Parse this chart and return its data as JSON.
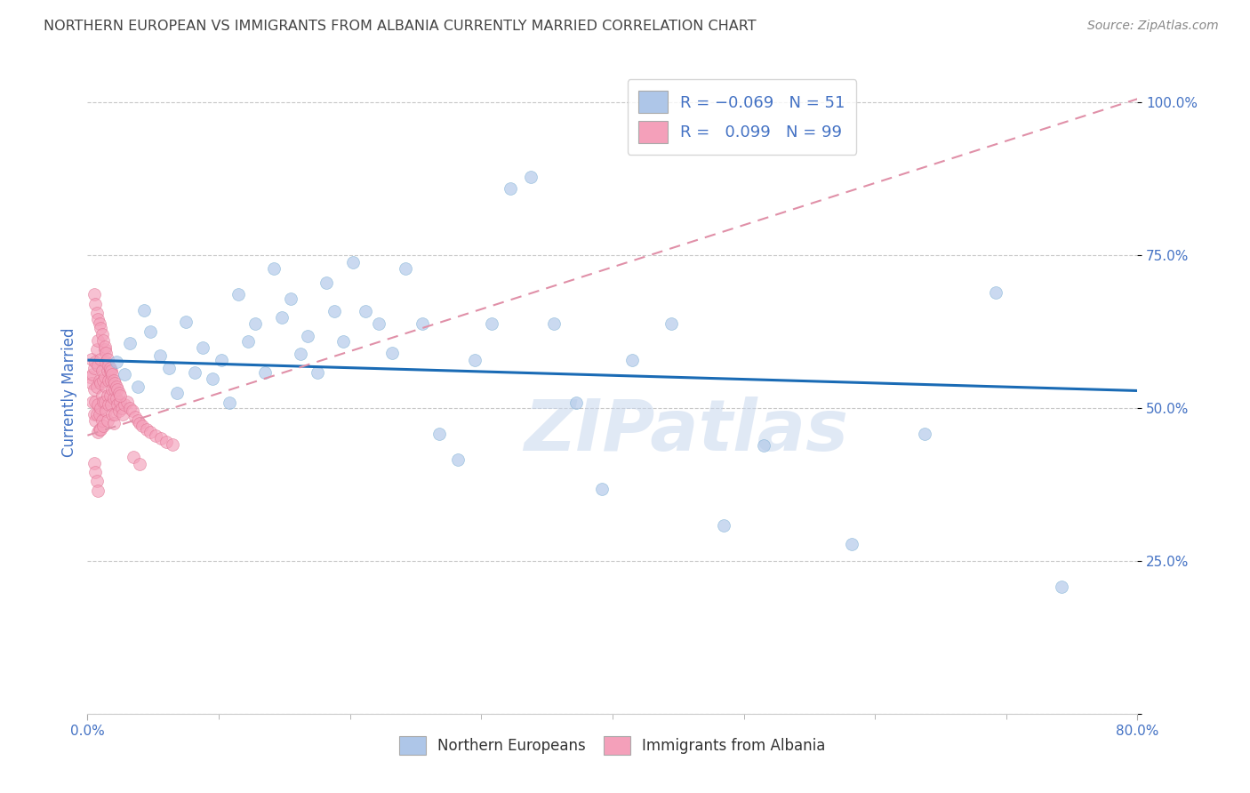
{
  "title": "NORTHERN EUROPEAN VS IMMIGRANTS FROM ALBANIA CURRENTLY MARRIED CORRELATION CHART",
  "source": "Source: ZipAtlas.com",
  "ylabel": "Currently Married",
  "legend_footer": [
    "Northern Europeans",
    "Immigrants from Albania"
  ],
  "blue_x": [
    0.022,
    0.028,
    0.032,
    0.038,
    0.043,
    0.048,
    0.055,
    0.062,
    0.068,
    0.075,
    0.082,
    0.088,
    0.095,
    0.102,
    0.108,
    0.115,
    0.122,
    0.128,
    0.135,
    0.142,
    0.148,
    0.155,
    0.162,
    0.168,
    0.175,
    0.182,
    0.188,
    0.195,
    0.202,
    0.212,
    0.222,
    0.232,
    0.242,
    0.255,
    0.268,
    0.282,
    0.295,
    0.308,
    0.322,
    0.338,
    0.355,
    0.372,
    0.392,
    0.415,
    0.445,
    0.485,
    0.515,
    0.582,
    0.638,
    0.692,
    0.742
  ],
  "blue_y": [
    0.575,
    0.555,
    0.605,
    0.535,
    0.66,
    0.625,
    0.585,
    0.565,
    0.525,
    0.64,
    0.558,
    0.598,
    0.548,
    0.578,
    0.508,
    0.685,
    0.608,
    0.638,
    0.558,
    0.728,
    0.648,
    0.678,
    0.588,
    0.618,
    0.558,
    0.705,
    0.658,
    0.608,
    0.738,
    0.658,
    0.638,
    0.59,
    0.728,
    0.638,
    0.458,
    0.415,
    0.578,
    0.638,
    0.858,
    0.878,
    0.638,
    0.508,
    0.368,
    0.578,
    0.638,
    0.308,
    0.438,
    0.278,
    0.458,
    0.688,
    0.208
  ],
  "pink_x": [
    0.002,
    0.003,
    0.003,
    0.004,
    0.004,
    0.005,
    0.005,
    0.005,
    0.006,
    0.006,
    0.006,
    0.007,
    0.007,
    0.007,
    0.008,
    0.008,
    0.008,
    0.008,
    0.009,
    0.009,
    0.009,
    0.01,
    0.01,
    0.01,
    0.01,
    0.011,
    0.011,
    0.011,
    0.012,
    0.012,
    0.012,
    0.013,
    0.013,
    0.013,
    0.014,
    0.014,
    0.014,
    0.015,
    0.015,
    0.015,
    0.016,
    0.016,
    0.017,
    0.017,
    0.018,
    0.018,
    0.019,
    0.019,
    0.02,
    0.02,
    0.021,
    0.021,
    0.022,
    0.023,
    0.024,
    0.025,
    0.026,
    0.027,
    0.028,
    0.03,
    0.032,
    0.034,
    0.036,
    0.038,
    0.04,
    0.042,
    0.045,
    0.048,
    0.052,
    0.056,
    0.06,
    0.065,
    0.005,
    0.006,
    0.007,
    0.008,
    0.009,
    0.01,
    0.011,
    0.012,
    0.013,
    0.014,
    0.015,
    0.016,
    0.017,
    0.018,
    0.019,
    0.02,
    0.021,
    0.022,
    0.023,
    0.024,
    0.025,
    0.005,
    0.006,
    0.007,
    0.008,
    0.035,
    0.04
  ],
  "pink_y": [
    0.55,
    0.54,
    0.58,
    0.555,
    0.51,
    0.565,
    0.53,
    0.49,
    0.575,
    0.51,
    0.48,
    0.595,
    0.535,
    0.49,
    0.57,
    0.505,
    0.46,
    0.61,
    0.545,
    0.49,
    0.465,
    0.58,
    0.54,
    0.5,
    0.465,
    0.56,
    0.52,
    0.48,
    0.545,
    0.51,
    0.47,
    0.595,
    0.55,
    0.51,
    0.575,
    0.535,
    0.495,
    0.56,
    0.52,
    0.48,
    0.545,
    0.505,
    0.56,
    0.52,
    0.545,
    0.505,
    0.53,
    0.49,
    0.515,
    0.475,
    0.53,
    0.49,
    0.515,
    0.505,
    0.495,
    0.51,
    0.5,
    0.49,
    0.505,
    0.51,
    0.5,
    0.495,
    0.485,
    0.48,
    0.475,
    0.47,
    0.465,
    0.46,
    0.455,
    0.45,
    0.445,
    0.44,
    0.685,
    0.67,
    0.655,
    0.645,
    0.638,
    0.63,
    0.62,
    0.61,
    0.6,
    0.59,
    0.58,
    0.57,
    0.565,
    0.56,
    0.555,
    0.545,
    0.54,
    0.535,
    0.53,
    0.525,
    0.52,
    0.41,
    0.395,
    0.38,
    0.365,
    0.42,
    0.408
  ],
  "blue_trend_x": [
    0.0,
    0.8
  ],
  "blue_trend_y": [
    0.578,
    0.528
  ],
  "pink_trend_x": [
    0.0,
    0.8
  ],
  "pink_trend_y": [
    0.455,
    1.005
  ],
  "xlim": [
    0.0,
    0.8
  ],
  "ylim": [
    0.0,
    1.05
  ],
  "y_ticks": [
    0.0,
    0.25,
    0.5,
    0.75,
    1.0
  ],
  "scatter_size": 100,
  "scatter_alpha": 0.65,
  "blue_color": "#aec6e8",
  "pink_color": "#f4a0ba",
  "blue_edge": "#7bafd4",
  "pink_edge": "#e07090",
  "trend_blue": "#1a6bb5",
  "trend_pink": "#e090a8",
  "grid_color": "#c8c8c8",
  "title_color": "#444444",
  "tick_color": "#4472c4",
  "watermark_color": "#c8d8ee",
  "watermark_alpha": 0.55,
  "watermark_text": "ZIPatlas"
}
